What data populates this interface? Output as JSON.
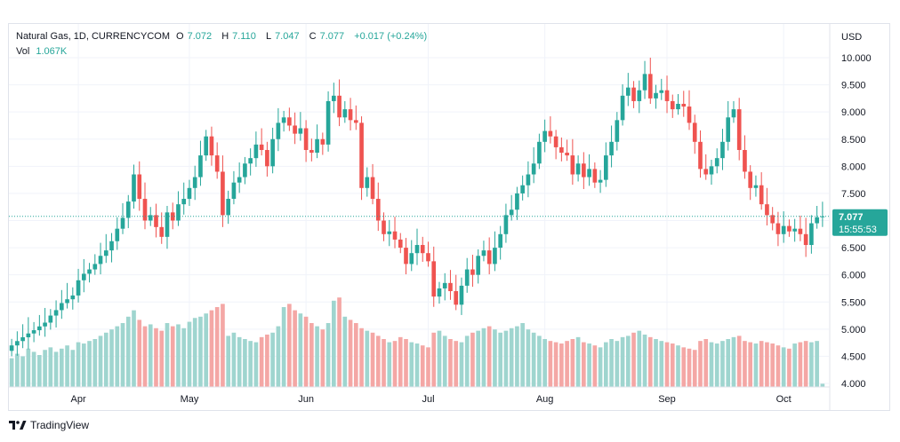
{
  "legend": {
    "symbol": "Natural Gas, 1D, CURRENCYCOM",
    "o_label": "O",
    "o_value": "7.072",
    "h_label": "H",
    "h_value": "7.110",
    "l_label": "L",
    "l_value": "7.047",
    "c_label": "C",
    "c_value": "7.077",
    "change": "+0.017 (+0.24%)",
    "vol_label": "Vol",
    "vol_value": "1.067K"
  },
  "price_label": {
    "price": "7.077",
    "countdown": "15:55:53"
  },
  "footer": {
    "brand": "TradingView",
    "icon": "tradingview-logo-icon"
  },
  "colors": {
    "up": "#26a69a",
    "down": "#ef5350",
    "up_vol": "#9fd5cf",
    "down_vol": "#f4a7a5",
    "grid": "#f0f3fa"
  },
  "chart_data": {
    "type": "candlestick",
    "currency": "USD",
    "ylim": [
      4.0,
      10.2
    ],
    "yticks": [
      "10.000",
      "9.500",
      "9.000",
      "8.500",
      "8.000",
      "7.500",
      "7.000",
      "6.500",
      "6.000",
      "5.500",
      "5.000",
      "4.500",
      "4.000"
    ],
    "ytick_values": [
      10.0,
      9.5,
      9.0,
      8.5,
      8.0,
      7.5,
      7.0,
      6.5,
      6.0,
      5.5,
      5.0,
      4.5,
      4.0
    ],
    "xticks": [
      {
        "label": "Apr",
        "index": 12
      },
      {
        "label": "May",
        "index": 32
      },
      {
        "label": "Jun",
        "index": 53
      },
      {
        "label": "Jul",
        "index": 75
      },
      {
        "label": "Aug",
        "index": 96
      },
      {
        "label": "Sep",
        "index": 118
      },
      {
        "label": "Oct",
        "index": 139
      }
    ],
    "last_price": 7.077,
    "closes": [
      4.7,
      4.78,
      4.85,
      4.92,
      4.98,
      5.05,
      5.12,
      5.25,
      5.35,
      5.48,
      5.55,
      5.62,
      5.9,
      6.02,
      6.1,
      6.2,
      6.35,
      6.45,
      6.62,
      6.85,
      7.05,
      7.35,
      7.85,
      7.4,
      7.0,
      7.1,
      6.88,
      6.7,
      7.15,
      7.0,
      7.3,
      7.4,
      7.6,
      7.8,
      8.2,
      8.55,
      8.2,
      7.9,
      7.1,
      7.4,
      7.7,
      7.8,
      8.05,
      8.15,
      8.4,
      8.3,
      8.0,
      8.5,
      8.8,
      8.9,
      8.75,
      8.6,
      8.7,
      8.3,
      8.25,
      8.5,
      8.4,
      9.2,
      9.3,
      8.9,
      9.05,
      8.85,
      8.8,
      7.6,
      7.8,
      7.4,
      7.0,
      6.75,
      6.8,
      6.65,
      6.5,
      6.2,
      6.4,
      6.55,
      6.4,
      6.25,
      5.6,
      5.75,
      5.85,
      5.7,
      5.45,
      5.8,
      6.1,
      6.0,
      6.35,
      6.45,
      6.2,
      6.5,
      6.75,
      7.1,
      7.2,
      7.5,
      7.65,
      7.85,
      8.05,
      8.45,
      8.65,
      8.55,
      8.35,
      8.25,
      8.2,
      7.85,
      8.05,
      7.8,
      7.95,
      7.7,
      7.75,
      8.2,
      8.45,
      8.85,
      9.3,
      9.45,
      9.2,
      9.4,
      9.7,
      9.25,
      9.35,
      9.4,
      9.2,
      9.05,
      9.15,
      9.1,
      8.8,
      8.45,
      7.95,
      7.85,
      8.0,
      8.15,
      8.45,
      8.9,
      9.05,
      8.3,
      7.9,
      7.6,
      7.65,
      7.3,
      7.1,
      6.95,
      6.75,
      6.9,
      6.8,
      6.85,
      6.75,
      6.55,
      6.95,
      7.06,
      7.077
    ],
    "opens": [
      4.6,
      4.7,
      4.78,
      4.85,
      4.92,
      4.98,
      5.05,
      5.12,
      5.25,
      5.35,
      5.48,
      5.55,
      5.62,
      5.9,
      6.02,
      6.1,
      6.2,
      6.35,
      6.45,
      6.62,
      6.85,
      7.05,
      7.35,
      7.85,
      7.4,
      7.0,
      7.1,
      6.88,
      6.7,
      7.15,
      7.0,
      7.3,
      7.4,
      7.6,
      7.8,
      8.2,
      8.55,
      8.2,
      7.9,
      7.1,
      7.4,
      7.7,
      7.8,
      8.05,
      8.15,
      8.4,
      8.3,
      8.0,
      8.5,
      8.8,
      8.9,
      8.75,
      8.6,
      8.7,
      8.3,
      8.25,
      8.5,
      8.4,
      9.2,
      9.3,
      8.9,
      9.05,
      8.85,
      8.8,
      7.6,
      7.8,
      7.4,
      7.0,
      6.75,
      6.8,
      6.65,
      6.5,
      6.2,
      6.4,
      6.55,
      6.4,
      6.25,
      5.6,
      5.75,
      5.85,
      5.7,
      5.45,
      5.8,
      6.1,
      6.0,
      6.35,
      6.45,
      6.2,
      6.5,
      6.75,
      7.1,
      7.2,
      7.5,
      7.65,
      7.85,
      8.05,
      8.45,
      8.65,
      8.55,
      8.35,
      8.25,
      8.2,
      7.85,
      8.05,
      7.8,
      7.95,
      7.7,
      7.75,
      8.2,
      8.45,
      8.85,
      9.3,
      9.45,
      9.2,
      9.4,
      9.7,
      9.25,
      9.35,
      9.4,
      9.2,
      9.05,
      9.15,
      9.1,
      8.8,
      8.45,
      7.95,
      7.85,
      8.0,
      8.15,
      8.45,
      8.9,
      9.05,
      8.3,
      7.9,
      7.6,
      7.65,
      7.3,
      7.1,
      6.95,
      6.75,
      6.9,
      6.8,
      6.85,
      6.75,
      6.55,
      6.95,
      7.072
    ],
    "volumes": [
      0.45,
      0.52,
      0.48,
      0.6,
      0.55,
      0.5,
      0.58,
      0.62,
      0.55,
      0.6,
      0.65,
      0.58,
      0.7,
      0.68,
      0.72,
      0.75,
      0.8,
      0.85,
      0.9,
      0.95,
      1.0,
      1.1,
      1.2,
      1.05,
      0.95,
      0.98,
      0.92,
      0.88,
      1.0,
      0.95,
      0.98,
      0.92,
      1.02,
      1.08,
      1.1,
      1.15,
      1.2,
      1.25,
      1.3,
      0.8,
      0.85,
      0.78,
      0.75,
      0.72,
      0.7,
      0.78,
      0.82,
      0.85,
      0.95,
      1.25,
      1.3,
      1.2,
      1.15,
      1.1,
      1.0,
      0.95,
      0.9,
      1.0,
      1.35,
      1.4,
      1.1,
      1.05,
      1.0,
      0.92,
      0.88,
      0.85,
      0.8,
      0.75,
      0.7,
      0.72,
      0.78,
      0.75,
      0.7,
      0.68,
      0.65,
      0.62,
      0.85,
      0.88,
      0.8,
      0.75,
      0.72,
      0.7,
      0.8,
      0.85,
      0.88,
      0.92,
      0.95,
      0.9,
      0.85,
      0.88,
      0.92,
      0.95,
      1.0,
      0.9,
      0.85,
      0.8,
      0.75,
      0.72,
      0.7,
      0.68,
      0.72,
      0.75,
      0.78,
      0.7,
      0.68,
      0.65,
      0.62,
      0.7,
      0.75,
      0.72,
      0.78,
      0.8,
      0.85,
      0.88,
      0.82,
      0.78,
      0.75,
      0.72,
      0.7,
      0.68,
      0.65,
      0.62,
      0.6,
      0.58,
      0.72,
      0.75,
      0.7,
      0.68,
      0.72,
      0.75,
      0.78,
      0.8,
      0.72,
      0.7,
      0.68,
      0.72,
      0.7,
      0.68,
      0.65,
      0.62,
      0.6,
      0.68,
      0.7,
      0.72,
      0.7,
      0.72,
      0.05
    ]
  }
}
